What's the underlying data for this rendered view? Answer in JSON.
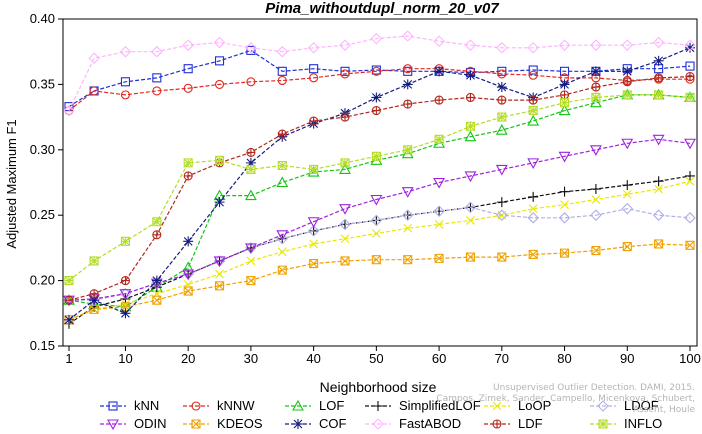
{
  "chart_data": {
    "type": "line",
    "title": "Pima_withoutdupl_norm_20_v07",
    "xlabel": "Neighborhood size",
    "ylabel": "Adjusted Maximum F1",
    "xlim": [
      1,
      100
    ],
    "ylim": [
      0.15,
      0.4
    ],
    "x_ticks": [
      1,
      10,
      20,
      30,
      40,
      50,
      60,
      70,
      80,
      90,
      100
    ],
    "y_ticks": [
      0.15,
      0.2,
      0.25,
      0.3,
      0.35,
      0.4
    ],
    "y_tick_labels": [
      "0.15",
      "0.20",
      "0.25",
      "0.30",
      "0.35",
      "0.40"
    ],
    "grid": false,
    "legend_position": "bottom",
    "x": [
      1,
      5,
      10,
      15,
      20,
      25,
      30,
      35,
      40,
      45,
      50,
      55,
      60,
      65,
      70,
      75,
      80,
      85,
      90,
      95,
      100
    ],
    "series": [
      {
        "name": "kNN",
        "color": "#1f2fd9",
        "marker": "square",
        "values": [
          0.333,
          0.345,
          0.352,
          0.355,
          0.362,
          0.368,
          0.376,
          0.36,
          0.362,
          0.36,
          0.361,
          0.36,
          0.36,
          0.359,
          0.36,
          0.361,
          0.36,
          0.36,
          0.362,
          0.362,
          0.364
        ]
      },
      {
        "name": "kNNW",
        "color": "#e3271f",
        "marker": "circle",
        "values": [
          0.33,
          0.345,
          0.342,
          0.345,
          0.347,
          0.35,
          0.352,
          0.353,
          0.355,
          0.358,
          0.36,
          0.362,
          0.362,
          0.36,
          0.358,
          0.357,
          0.355,
          0.355,
          0.353,
          0.354,
          0.354
        ]
      },
      {
        "name": "LOF",
        "color": "#15c415",
        "marker": "triangle-up",
        "values": [
          0.185,
          0.182,
          0.18,
          0.195,
          0.21,
          0.265,
          0.265,
          0.275,
          0.283,
          0.285,
          0.292,
          0.297,
          0.305,
          0.31,
          0.315,
          0.322,
          0.33,
          0.336,
          0.342,
          0.342,
          0.34
        ]
      },
      {
        "name": "SimplifiedLOF",
        "color": "#111111",
        "marker": "plus",
        "values": [
          0.167,
          0.18,
          0.186,
          0.195,
          0.205,
          0.215,
          0.225,
          0.232,
          0.238,
          0.243,
          0.246,
          0.25,
          0.253,
          0.256,
          0.26,
          0.264,
          0.268,
          0.27,
          0.273,
          0.276,
          0.28
        ]
      },
      {
        "name": "LoOP",
        "color": "#e8e800",
        "marker": "x",
        "values": [
          0.17,
          0.178,
          0.182,
          0.19,
          0.197,
          0.205,
          0.215,
          0.222,
          0.228,
          0.232,
          0.236,
          0.24,
          0.243,
          0.246,
          0.25,
          0.255,
          0.258,
          0.262,
          0.266,
          0.27,
          0.276
        ]
      },
      {
        "name": "LDOF",
        "color": "#b0b0e8",
        "marker": "diamond",
        "values": [
          0.185,
          0.185,
          0.19,
          0.198,
          0.205,
          0.215,
          0.225,
          0.232,
          0.238,
          0.243,
          0.246,
          0.25,
          0.253,
          0.256,
          0.25,
          0.248,
          0.248,
          0.25,
          0.255,
          0.25,
          0.248
        ]
      },
      {
        "name": "ODIN",
        "color": "#a020e0",
        "marker": "triangle-down",
        "values": [
          0.185,
          0.186,
          0.19,
          0.198,
          0.205,
          0.215,
          0.225,
          0.235,
          0.245,
          0.255,
          0.262,
          0.268,
          0.275,
          0.28,
          0.285,
          0.29,
          0.295,
          0.3,
          0.305,
          0.308,
          0.305
        ]
      },
      {
        "name": "KDEOS",
        "color": "#f0a000",
        "marker": "square-x",
        "values": [
          0.17,
          0.178,
          0.18,
          0.185,
          0.192,
          0.196,
          0.2,
          0.208,
          0.213,
          0.215,
          0.216,
          0.216,
          0.217,
          0.218,
          0.218,
          0.22,
          0.221,
          0.223,
          0.226,
          0.228,
          0.227
        ]
      },
      {
        "name": "COF",
        "color": "#141c80",
        "marker": "asterisk",
        "values": [
          0.17,
          0.185,
          0.175,
          0.2,
          0.23,
          0.26,
          0.29,
          0.31,
          0.32,
          0.328,
          0.34,
          0.35,
          0.36,
          0.357,
          0.348,
          0.34,
          0.35,
          0.36,
          0.36,
          0.368,
          0.378
        ]
      },
      {
        "name": "FastABOD",
        "color": "#ffb4ff",
        "marker": "diamond",
        "values": [
          0.33,
          0.37,
          0.375,
          0.375,
          0.38,
          0.382,
          0.378,
          0.375,
          0.378,
          0.38,
          0.385,
          0.387,
          0.383,
          0.38,
          0.378,
          0.378,
          0.38,
          0.38,
          0.38,
          0.382,
          0.38
        ]
      },
      {
        "name": "LDF",
        "color": "#b2281e",
        "marker": "circle-plus",
        "values": [
          0.185,
          0.19,
          0.2,
          0.235,
          0.28,
          0.29,
          0.298,
          0.312,
          0.322,
          0.325,
          0.33,
          0.335,
          0.338,
          0.34,
          0.338,
          0.338,
          0.342,
          0.348,
          0.352,
          0.355,
          0.356
        ]
      },
      {
        "name": "INFLO",
        "color": "#b4dc28",
        "marker": "square-asterisk",
        "values": [
          0.2,
          0.215,
          0.23,
          0.245,
          0.29,
          0.292,
          0.285,
          0.288,
          0.285,
          0.29,
          0.295,
          0.3,
          0.308,
          0.318,
          0.325,
          0.33,
          0.336,
          0.34,
          0.342,
          0.342,
          0.34
        ]
      }
    ],
    "legend_order": [
      "kNN",
      "kNNW",
      "LOF",
      "SimplifiedLOF",
      "LoOP",
      "LDOF",
      "ODIN",
      "KDEOS",
      "COF",
      "FastABOD",
      "LDF",
      "INFLO"
    ],
    "watermark": [
      "Unsupervised Outlier Detection. DAMI, 2015.",
      "Campos, Zimek, Sander, Campello, Micenkova, Schubert, Assent, Houle"
    ]
  }
}
